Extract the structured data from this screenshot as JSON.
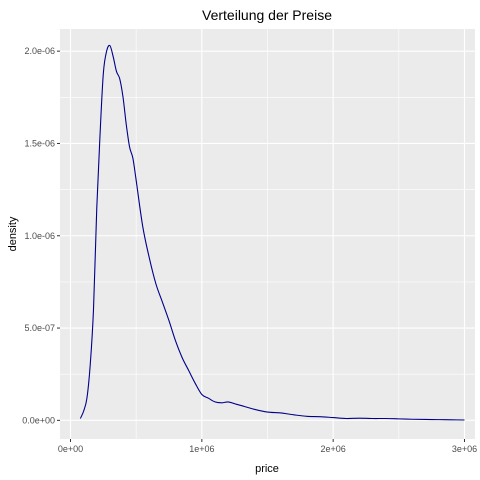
{
  "chart_data": {
    "type": "line",
    "title": "Verteilung der Preise",
    "xlabel": "price",
    "ylabel": "density",
    "xlim": [
      -80000,
      3080000
    ],
    "ylim": [
      -1.01e-07,
      2.12e-06
    ],
    "x_ticks": [
      {
        "value": 0,
        "label": "0e+00"
      },
      {
        "value": 1000000,
        "label": "1e+06"
      },
      {
        "value": 2000000,
        "label": "2e+06"
      },
      {
        "value": 3000000,
        "label": "3e+06"
      }
    ],
    "y_ticks": [
      {
        "value": 0,
        "label": "0.0e+00"
      },
      {
        "value": 5e-07,
        "label": "5.0e-07"
      },
      {
        "value": 1e-06,
        "label": "1.0e-06"
      },
      {
        "value": 1.5e-06,
        "label": "1.5e-06"
      },
      {
        "value": 2e-06,
        "label": "2.0e-06"
      }
    ],
    "grid": true,
    "legend": "none",
    "colors": {
      "panel_background": "#ebebeb",
      "grid_major": "#ffffff",
      "line": "#00008b"
    },
    "series": [
      {
        "x": [
          75000,
          100000,
          125000,
          150000,
          175000,
          200000,
          225000,
          250000,
          275000,
          300000,
          325000,
          350000,
          375000,
          400000,
          425000,
          450000,
          475000,
          500000,
          550000,
          600000,
          650000,
          700000,
          750000,
          800000,
          850000,
          900000,
          950000,
          1000000,
          1050000,
          1100000,
          1150000,
          1200000,
          1250000,
          1300000,
          1400000,
          1500000,
          1600000,
          1700000,
          1800000,
          1900000,
          2000000,
          2100000,
          2200000,
          2300000,
          2400000,
          2500000,
          2600000,
          2700000,
          2800000,
          2900000,
          3000000
        ],
        "y": [
          1e-08,
          5e-08,
          1.2e-07,
          3e-07,
          6e-07,
          1.15e-06,
          1.55e-06,
          1.88e-06,
          2e-06,
          2.03e-06,
          1.97e-06,
          1.89e-06,
          1.85e-06,
          1.75e-06,
          1.6e-06,
          1.48e-06,
          1.42e-06,
          1.3e-06,
          1.05e-06,
          8.8e-07,
          7.4e-07,
          6.4e-07,
          5.4e-07,
          4.3e-07,
          3.4e-07,
          2.7e-07,
          2e-07,
          1.4e-07,
          1.2e-07,
          1e-07,
          9.5e-08,
          1e-07,
          9e-08,
          8e-08,
          6e-08,
          4.5e-08,
          4e-08,
          3e-08,
          2.2e-08,
          2e-08,
          1.5e-08,
          1e-08,
          1.2e-08,
          1e-08,
          1e-08,
          8e-09,
          6e-09,
          5e-09,
          4e-09,
          3e-09,
          2e-09
        ]
      }
    ]
  }
}
